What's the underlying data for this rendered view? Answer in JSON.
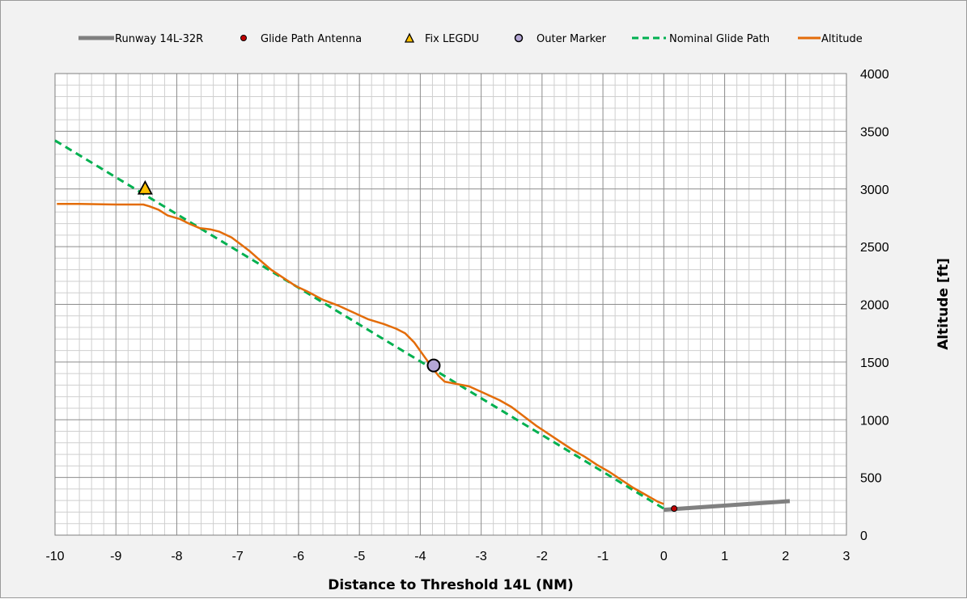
{
  "chart_data": {
    "type": "line",
    "xlabel": "Distance to Threshold 14L (NM)",
    "ylabel": "Altitude [ft]",
    "xlim": [
      -10,
      3
    ],
    "ylim": [
      0,
      4000
    ],
    "x_ticks": [
      "-10",
      "-9",
      "-8",
      "-7",
      "-6",
      "-5",
      "-4",
      "-3",
      "-2",
      "-1",
      "0",
      "1",
      "2",
      "3"
    ],
    "y_ticks": [
      "0",
      "500",
      "1000",
      "1500",
      "2000",
      "2500",
      "3000",
      "3500",
      "4000"
    ],
    "grid": true,
    "y_axis_position": "right",
    "legend_position": "top",
    "series": [
      {
        "name": "Runway 14L-32R",
        "style": "thick-line",
        "color": "#808080",
        "points": [
          [
            0,
            220
          ],
          [
            2.07,
            295
          ]
        ]
      },
      {
        "name": "Glide Path Antenna",
        "style": "marker-circle-small",
        "color": "#c00000",
        "points": [
          [
            0.17,
            230
          ]
        ]
      },
      {
        "name": "Fix LEGDU",
        "style": "marker-triangle",
        "color": "#ffc000",
        "points": [
          [
            -8.52,
            3000
          ]
        ]
      },
      {
        "name": "Outer Marker",
        "style": "marker-circle-large",
        "color": "#b4a7d6",
        "points": [
          [
            -3.78,
            1470
          ]
        ]
      },
      {
        "name": "Nominal Glide Path",
        "style": "dashed-line",
        "color": "#00b050",
        "points": [
          [
            -10,
            3420
          ],
          [
            0,
            230
          ]
        ]
      },
      {
        "name": "Altitude",
        "style": "line",
        "color": "#e36c09",
        "points": [
          [
            -9.97,
            2870
          ],
          [
            -9.6,
            2870
          ],
          [
            -9.0,
            2865
          ],
          [
            -8.7,
            2865
          ],
          [
            -8.55,
            2865
          ],
          [
            -8.45,
            2850
          ],
          [
            -8.3,
            2820
          ],
          [
            -8.15,
            2770
          ],
          [
            -7.95,
            2740
          ],
          [
            -7.8,
            2700
          ],
          [
            -7.62,
            2660
          ],
          [
            -7.45,
            2650
          ],
          [
            -7.3,
            2630
          ],
          [
            -7.1,
            2580
          ],
          [
            -6.95,
            2520
          ],
          [
            -6.8,
            2460
          ],
          [
            -6.65,
            2390
          ],
          [
            -6.45,
            2300
          ],
          [
            -6.25,
            2230
          ],
          [
            -6.05,
            2160
          ],
          [
            -5.85,
            2110
          ],
          [
            -5.6,
            2040
          ],
          [
            -5.35,
            1990
          ],
          [
            -5.1,
            1930
          ],
          [
            -4.85,
            1870
          ],
          [
            -4.6,
            1830
          ],
          [
            -4.4,
            1790
          ],
          [
            -4.25,
            1750
          ],
          [
            -4.1,
            1670
          ],
          [
            -3.95,
            1560
          ],
          [
            -3.8,
            1450
          ],
          [
            -3.7,
            1380
          ],
          [
            -3.6,
            1330
          ],
          [
            -3.4,
            1310
          ],
          [
            -3.2,
            1290
          ],
          [
            -2.95,
            1230
          ],
          [
            -2.7,
            1170
          ],
          [
            -2.5,
            1110
          ],
          [
            -2.3,
            1030
          ],
          [
            -2.1,
            950
          ],
          [
            -1.9,
            880
          ],
          [
            -1.7,
            810
          ],
          [
            -1.5,
            740
          ],
          [
            -1.3,
            680
          ],
          [
            -1.1,
            610
          ],
          [
            -0.9,
            550
          ],
          [
            -0.7,
            480
          ],
          [
            -0.5,
            410
          ],
          [
            -0.3,
            350
          ],
          [
            -0.1,
            290
          ],
          [
            0.0,
            270
          ]
        ]
      }
    ]
  }
}
